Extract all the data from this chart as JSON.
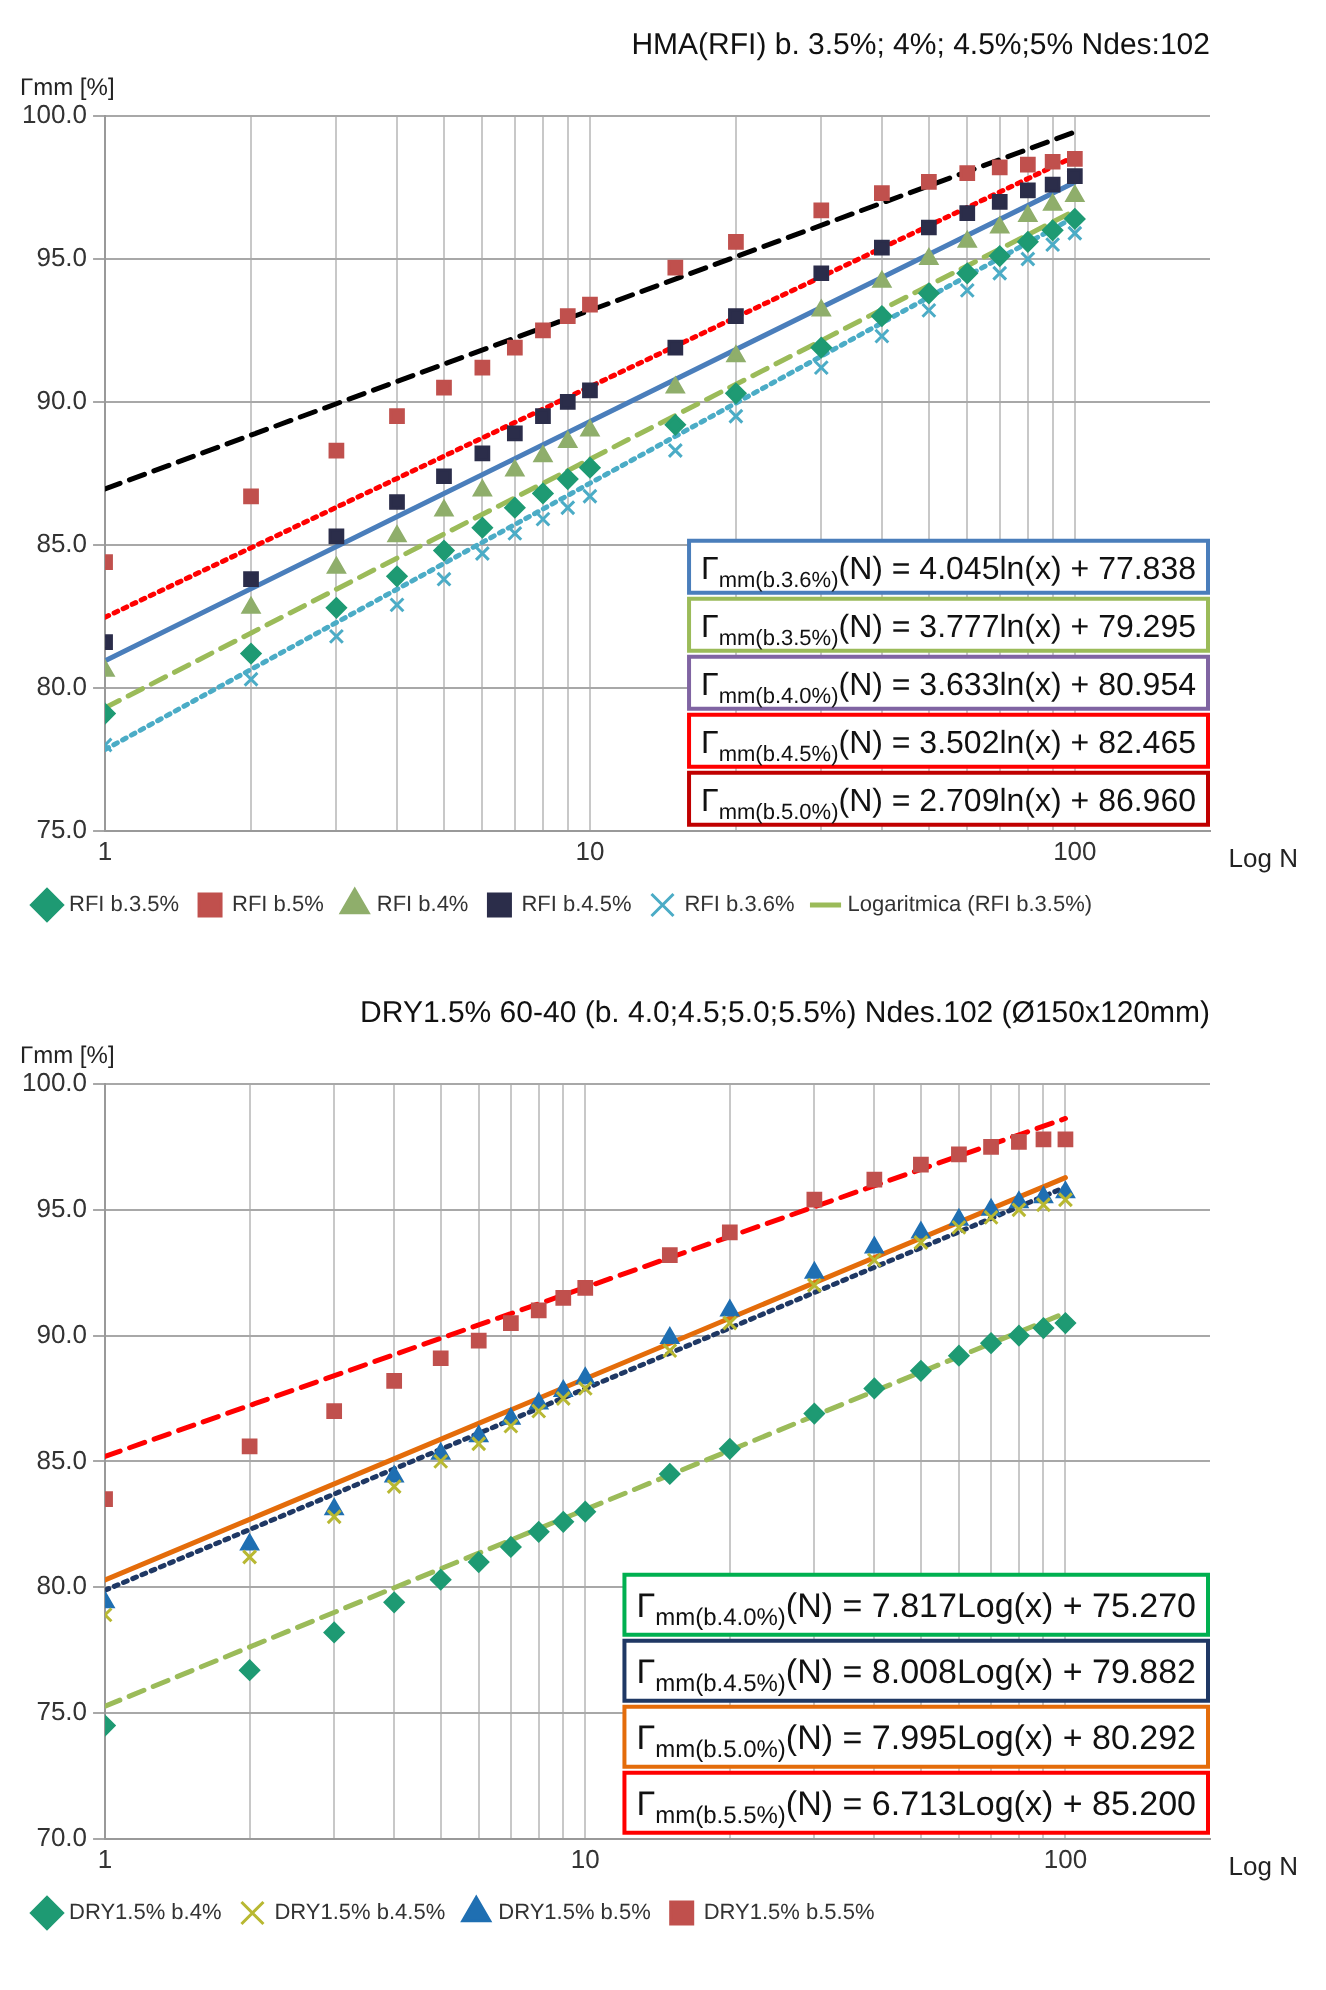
{
  "chart_data": [
    {
      "type": "scatter",
      "title": "HMA(RFI) b. 3.5%; 4%; 4.5%;5% Ndes:102",
      "ylabel": "Γmm [%]",
      "xlabel": "Log N",
      "log": "x",
      "grid": true,
      "legend": "bottom",
      "xlim": [
        1,
        190
      ],
      "ylim": [
        75,
        100
      ],
      "xticks": [
        1,
        {
          "value": 2,
          "label": null
        },
        {
          "value": 3,
          "label": null
        },
        {
          "value": 4,
          "label": null
        },
        {
          "value": 5,
          "label": null
        },
        {
          "value": 6,
          "label": null
        },
        {
          "value": 7,
          "label": null
        },
        {
          "value": 8,
          "label": null
        },
        {
          "value": 9,
          "label": null
        },
        10,
        {
          "value": 20,
          "label": null
        },
        {
          "value": 30,
          "label": null
        },
        {
          "value": 40,
          "label": null
        },
        {
          "value": 50,
          "label": null
        },
        {
          "value": 60,
          "label": null
        },
        {
          "value": 70,
          "label": null
        },
        {
          "value": 80,
          "label": null
        },
        {
          "value": 90,
          "label": null
        },
        100
      ],
      "yticks": [
        {
          "value": 75,
          "label": "75.0"
        },
        {
          "value": 80,
          "label": "80.0"
        },
        {
          "value": 85,
          "label": "85.0"
        },
        {
          "value": 90,
          "label": "90.0"
        },
        {
          "value": 95,
          "label": "95.0"
        },
        {
          "value": 100,
          "label": "100.0"
        }
      ],
      "x": [
        1,
        2,
        3,
        4,
        5,
        6,
        7,
        8,
        9,
        10,
        15,
        20,
        30,
        40,
        50,
        60,
        70,
        80,
        90,
        100
      ],
      "series": [
        {
          "name": "RFI b.3.5%",
          "type": "scatter",
          "marker": "diamond",
          "color": "#1e9a73",
          "values": [
            79.1,
            81.2,
            82.8,
            83.9,
            84.8,
            85.6,
            86.3,
            86.8,
            87.3,
            87.7,
            89.2,
            90.3,
            91.9,
            93.0,
            93.8,
            94.5,
            95.1,
            95.6,
            96.0,
            96.4
          ]
        },
        {
          "name": "RFI b.5%",
          "type": "scatter",
          "marker": "square",
          "color": "#c0504d",
          "values": [
            84.4,
            86.7,
            88.3,
            89.5,
            90.5,
            91.2,
            91.9,
            92.5,
            93.0,
            93.4,
            94.7,
            95.6,
            96.7,
            97.3,
            97.7,
            98.0,
            98.2,
            98.3,
            98.4,
            98.5
          ]
        },
        {
          "name": "RFI b.4%",
          "type": "scatter",
          "marker": "triangle",
          "color": "#8fae6b",
          "values": [
            80.6,
            82.8,
            84.2,
            85.3,
            86.2,
            86.9,
            87.6,
            88.1,
            88.6,
            89.0,
            90.5,
            91.6,
            93.2,
            94.2,
            95.0,
            95.6,
            96.1,
            96.5,
            96.9,
            97.2
          ]
        },
        {
          "name": "RFI b.4.5%",
          "type": "scatter",
          "marker": "square",
          "color": "#2b2d4a",
          "values": [
            81.6,
            83.8,
            85.3,
            86.5,
            87.4,
            88.2,
            88.9,
            89.5,
            90.0,
            90.4,
            91.9,
            93.0,
            94.5,
            95.4,
            96.1,
            96.6,
            97.0,
            97.4,
            97.6,
            97.9
          ]
        },
        {
          "name": "RFI b.3.6%",
          "type": "scatter",
          "marker": "cross",
          "color": "#4bacc6",
          "values": [
            78.0,
            80.3,
            81.8,
            82.9,
            83.8,
            84.7,
            85.4,
            85.9,
            86.3,
            86.7,
            88.3,
            89.5,
            91.2,
            92.3,
            93.2,
            93.9,
            94.5,
            95.0,
            95.5,
            95.9
          ]
        },
        {
          "name": "Logaritmica (RFI b.3.5%)",
          "type": "line",
          "line_style": "dashed",
          "color": "#9bbb59",
          "values": [
            79.3,
            null,
            null,
            null,
            null,
            null,
            null,
            null,
            null,
            null,
            null,
            null,
            null,
            null,
            null,
            null,
            null,
            null,
            null,
            96.69
          ]
        },
        {
          "type": "line",
          "line_style": "dotted",
          "color": "#4bacc6",
          "values": [
            77.84,
            null,
            null,
            null,
            null,
            null,
            null,
            null,
            null,
            null,
            null,
            null,
            null,
            null,
            null,
            null,
            null,
            null,
            null,
            96.47
          ]
        },
        {
          "type": "line",
          "line_style": "solid",
          "color": "#4a7ebb",
          "values": [
            80.95,
            null,
            null,
            null,
            null,
            null,
            null,
            null,
            null,
            null,
            null,
            null,
            null,
            null,
            null,
            null,
            null,
            null,
            null,
            97.68
          ]
        },
        {
          "type": "line",
          "line_style": "dotted",
          "color": "#ff0000",
          "values": [
            82.47,
            null,
            null,
            null,
            null,
            null,
            null,
            null,
            null,
            null,
            null,
            null,
            null,
            null,
            null,
            null,
            null,
            null,
            null,
            98.59
          ]
        },
        {
          "type": "line",
          "line_style": "dashed",
          "color": "#000000",
          "values": [
            86.96,
            null,
            null,
            null,
            null,
            null,
            null,
            null,
            null,
            null,
            null,
            null,
            null,
            null,
            null,
            null,
            null,
            null,
            null,
            99.44
          ]
        }
      ],
      "annotations": [
        "Γ$_{mm(b.3.6%)}$(N) = 4.045ln(x) + 77.838",
        "Γ$_{mm(b.3.5%)}$(N) = 3.777ln(x) + 79.295",
        "Γ$_{mm(b.4.0%)}$(N) = 3.633ln(x) + 80.954",
        "Γ$_{mm(b.4.5%)}$(N) = 3.502ln(x) + 82.465",
        "Γ$_{mm(b.5.0%)}$(N) = 2.709ln(x) + 86.960"
      ]
    },
    {
      "type": "scatter",
      "title": "DRY1.5% 60-40 (b. 4.0;4.5;5.0;5.5%) Ndes.102 (Ø150x120mm)",
      "ylabel": "Γmm [%]",
      "xlabel": "Log N",
      "log": "x",
      "grid": true,
      "legend": "bottom",
      "xlim": [
        1,
        200
      ],
      "ylim": [
        70,
        100
      ],
      "xticks": [
        1,
        {
          "value": 2,
          "label": null
        },
        {
          "value": 3,
          "label": null
        },
        {
          "value": 4,
          "label": null
        },
        {
          "value": 5,
          "label": null
        },
        {
          "value": 6,
          "label": null
        },
        {
          "value": 7,
          "label": null
        },
        {
          "value": 8,
          "label": null
        },
        {
          "value": 9,
          "label": null
        },
        10,
        {
          "value": 20,
          "label": null
        },
        {
          "value": 30,
          "label": null
        },
        {
          "value": 40,
          "label": null
        },
        {
          "value": 50,
          "label": null
        },
        {
          "value": 60,
          "label": null
        },
        {
          "value": 70,
          "label": null
        },
        {
          "value": 80,
          "label": null
        },
        {
          "value": 90,
          "label": null
        },
        100
      ],
      "yticks": [
        {
          "value": 70,
          "label": "70.0"
        },
        {
          "value": 75,
          "label": "75.0"
        },
        {
          "value": 80,
          "label": "80.0"
        },
        {
          "value": 85,
          "label": "85.0"
        },
        {
          "value": 90,
          "label": "90.0"
        },
        {
          "value": 95,
          "label": "95.0"
        },
        {
          "value": 100,
          "label": "100.0"
        }
      ],
      "x": [
        1,
        2,
        3,
        4,
        5,
        6,
        7,
        8,
        9,
        10,
        15,
        20,
        30,
        40,
        50,
        60,
        70,
        80,
        90,
        100
      ],
      "series": [
        {
          "name": "DRY1.5% b.4%",
          "type": "scatter",
          "marker": "diamond",
          "color": "#1e9a73",
          "values": [
            74.5,
            76.7,
            78.2,
            79.4,
            80.3,
            81.0,
            81.6,
            82.2,
            82.6,
            83.0,
            84.5,
            85.5,
            86.9,
            87.9,
            88.6,
            89.2,
            89.7,
            90.0,
            90.3,
            90.5
          ]
        },
        {
          "name": "DRY1.5% b.4.5%",
          "type": "scatter",
          "marker": "cross",
          "color": "#b8b832",
          "values": [
            78.9,
            81.2,
            82.8,
            84.0,
            85.0,
            85.7,
            86.4,
            87.0,
            87.5,
            87.9,
            89.4,
            90.5,
            92.0,
            93.0,
            93.7,
            94.3,
            94.7,
            95.0,
            95.2,
            95.4
          ]
        },
        {
          "name": "DRY1.5% b.5%",
          "type": "scatter",
          "marker": "triangle",
          "color": "#1f6fb2",
          "values": [
            79.4,
            81.7,
            83.1,
            84.4,
            85.3,
            86.0,
            86.7,
            87.3,
            87.8,
            88.3,
            89.9,
            91.0,
            92.5,
            93.5,
            94.1,
            94.6,
            95.0,
            95.3,
            95.5,
            95.7
          ]
        },
        {
          "name": "DRY1.5% b.5.5%",
          "type": "scatter",
          "marker": "square",
          "color": "#c0504d",
          "values": [
            83.5,
            85.6,
            87.0,
            88.2,
            89.1,
            89.8,
            90.5,
            91.0,
            91.5,
            91.9,
            93.2,
            94.1,
            95.4,
            96.2,
            96.8,
            97.2,
            97.5,
            97.7,
            97.8,
            97.8
          ]
        },
        {
          "type": "line",
          "line_style": "dashed",
          "color": "#9bbb59",
          "values": [
            75.27,
            null,
            null,
            null,
            null,
            null,
            null,
            null,
            null,
            null,
            null,
            null,
            null,
            null,
            null,
            null,
            null,
            null,
            null,
            90.9
          ]
        },
        {
          "type": "line",
          "line_style": "dotted",
          "color": "#1f3864",
          "values": [
            79.88,
            null,
            null,
            null,
            null,
            null,
            null,
            null,
            null,
            null,
            null,
            null,
            null,
            null,
            null,
            null,
            null,
            null,
            null,
            95.9
          ]
        },
        {
          "type": "line",
          "line_style": "solid",
          "color": "#e46c0a",
          "values": [
            80.29,
            null,
            null,
            null,
            null,
            null,
            null,
            null,
            null,
            null,
            null,
            null,
            null,
            null,
            null,
            null,
            null,
            null,
            null,
            96.28
          ]
        },
        {
          "type": "line",
          "line_style": "dashed",
          "color": "#ff0000",
          "values": [
            85.2,
            null,
            null,
            null,
            null,
            null,
            null,
            null,
            null,
            null,
            null,
            null,
            null,
            null,
            null,
            null,
            null,
            null,
            null,
            98.63
          ]
        }
      ],
      "annotations": [
        "Γ$_{mm(b.4.0%)}$(N) = 7.817Log(x) + 75.270",
        "Γ$_{mm(b.4.5%)}$(N) = 8.008Log(x) + 79.882",
        "Γ$_{mm(b.5.0%)}$(N) = 7.995Log(x) + 80.292",
        "Γ$_{mm(b.5.5%)}$(N) = 6.713Log(x) + 85.200"
      ]
    }
  ]
}
